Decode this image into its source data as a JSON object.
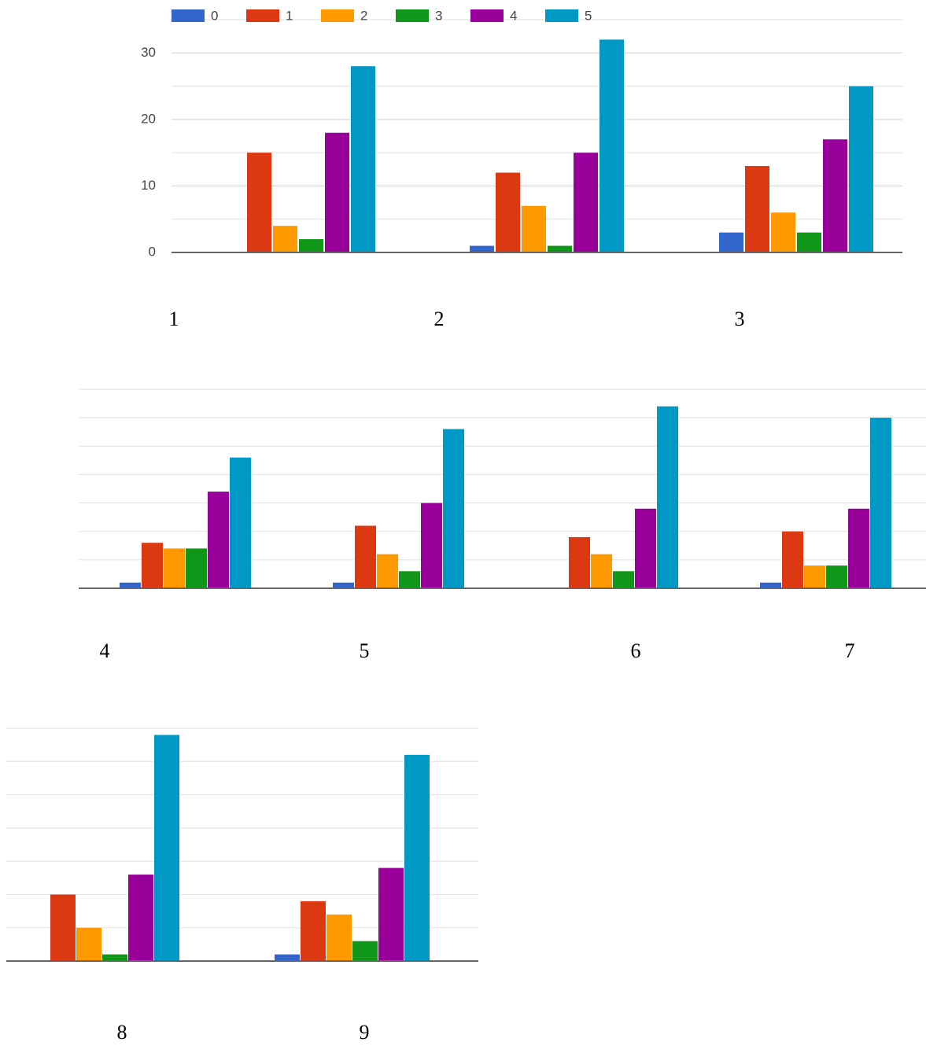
{
  "chart_data": [
    {
      "type": "bar",
      "legend": true,
      "categories": [
        "1",
        "2",
        "3"
      ],
      "series": [
        {
          "name": "0",
          "color": "#3366cc",
          "values": [
            0,
            1,
            3
          ]
        },
        {
          "name": "1",
          "color": "#dc3912",
          "values": [
            15,
            12,
            13
          ]
        },
        {
          "name": "2",
          "color": "#ff9900",
          "values": [
            4,
            7,
            6
          ]
        },
        {
          "name": "3",
          "color": "#109618",
          "values": [
            2,
            1,
            3
          ]
        },
        {
          "name": "4",
          "color": "#990099",
          "values": [
            18,
            15,
            17
          ]
        },
        {
          "name": "5",
          "color": "#0099c6",
          "values": [
            28,
            32,
            25
          ]
        }
      ],
      "ylim": [
        0,
        35
      ],
      "yticks": [
        0,
        10,
        20,
        30
      ],
      "minor_yticks": [
        5,
        15,
        25,
        35
      ]
    },
    {
      "type": "bar",
      "legend": false,
      "categories": [
        "4",
        "5",
        "6",
        "7"
      ],
      "series": [
        {
          "color": "#3366cc",
          "values": [
            1,
            1,
            0,
            1
          ]
        },
        {
          "color": "#dc3912",
          "values": [
            8,
            11,
            9,
            10
          ]
        },
        {
          "color": "#ff9900",
          "values": [
            7,
            6,
            6,
            4
          ]
        },
        {
          "color": "#109618",
          "values": [
            7,
            3,
            3,
            4
          ]
        },
        {
          "color": "#990099",
          "values": [
            17,
            15,
            14,
            14
          ]
        },
        {
          "color": "#0099c6",
          "values": [
            23,
            28,
            32,
            30
          ]
        }
      ],
      "ylim": [
        0,
        35
      ],
      "minor_yticks": [
        5,
        10,
        15,
        20,
        25,
        30,
        35
      ]
    },
    {
      "type": "bar",
      "legend": false,
      "categories": [
        "8",
        "9"
      ],
      "series": [
        {
          "color": "#3366cc",
          "values": [
            0,
            1
          ]
        },
        {
          "color": "#dc3912",
          "values": [
            10,
            9
          ]
        },
        {
          "color": "#ff9900",
          "values": [
            5,
            7
          ]
        },
        {
          "color": "#109618",
          "values": [
            1,
            3
          ]
        },
        {
          "color": "#990099",
          "values": [
            13,
            14
          ]
        },
        {
          "color": "#0099c6",
          "values": [
            34,
            31
          ]
        }
      ],
      "ylim": [
        0,
        35
      ],
      "minor_yticks": [
        5,
        10,
        15,
        20,
        25,
        30,
        35
      ]
    }
  ]
}
